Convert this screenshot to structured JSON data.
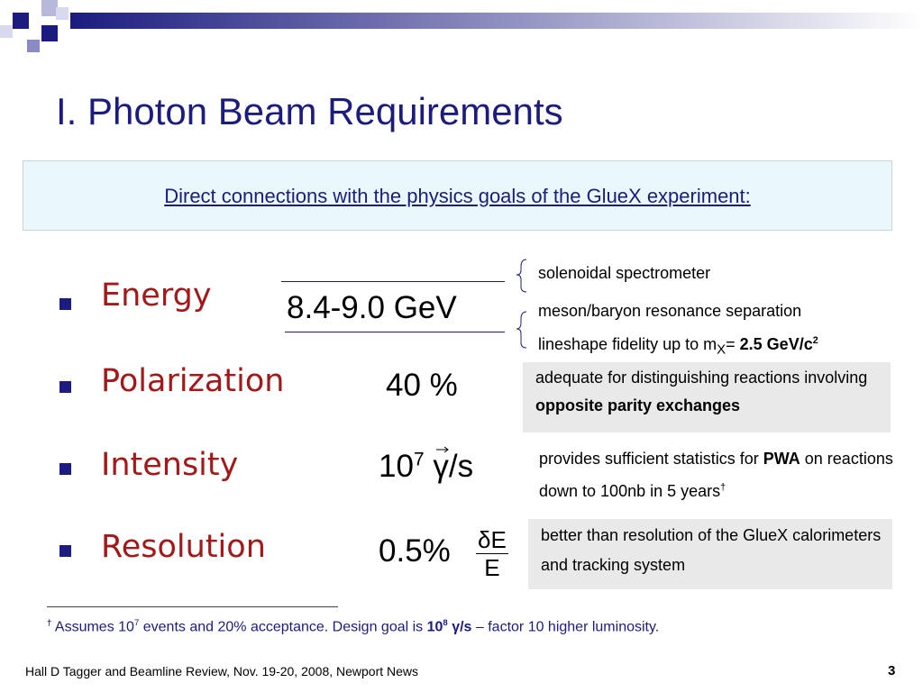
{
  "title": "I.  Photon Beam Requirements",
  "banner": "Direct connections with the physics goals of the GlueX experiment:",
  "rows": [
    {
      "label": "Energy",
      "value": "8.4-9.0 GeV",
      "notes": [
        "solenoidal spectrometer",
        "meson/baryon resonance separation",
        "lineshape fidelity up to m",
        "X",
        "= ",
        "2.5 GeV/c",
        "2"
      ]
    },
    {
      "label": "Polarization",
      "value": "40 %",
      "notes": [
        "adequate for distinguishing reactions involving ",
        "opposite parity exchanges"
      ]
    },
    {
      "label": "Intensity",
      "value": [
        "10",
        "7",
        "γ",
        "/s"
      ],
      "notes": [
        "provides sufficient statistics for ",
        "PWA",
        " on reactions down to 100nb in 5 years",
        "†"
      ]
    },
    {
      "label": "Resolution",
      "value": [
        "0.5%",
        "δE",
        "E"
      ],
      "notes": [
        "better than resolution of the GlueX calorimeters and tracking system"
      ]
    }
  ],
  "footnote": [
    "†",
    " Assumes 10",
    "7",
    " events and 20% acceptance.  Design goal is ",
    "10",
    "8",
    " γ/s",
    " – factor 10 higher luminosity."
  ],
  "footer": "Hall D Tagger and Beamline Review, Nov. 19-20, 2008, Newport News",
  "page_number": "3"
}
